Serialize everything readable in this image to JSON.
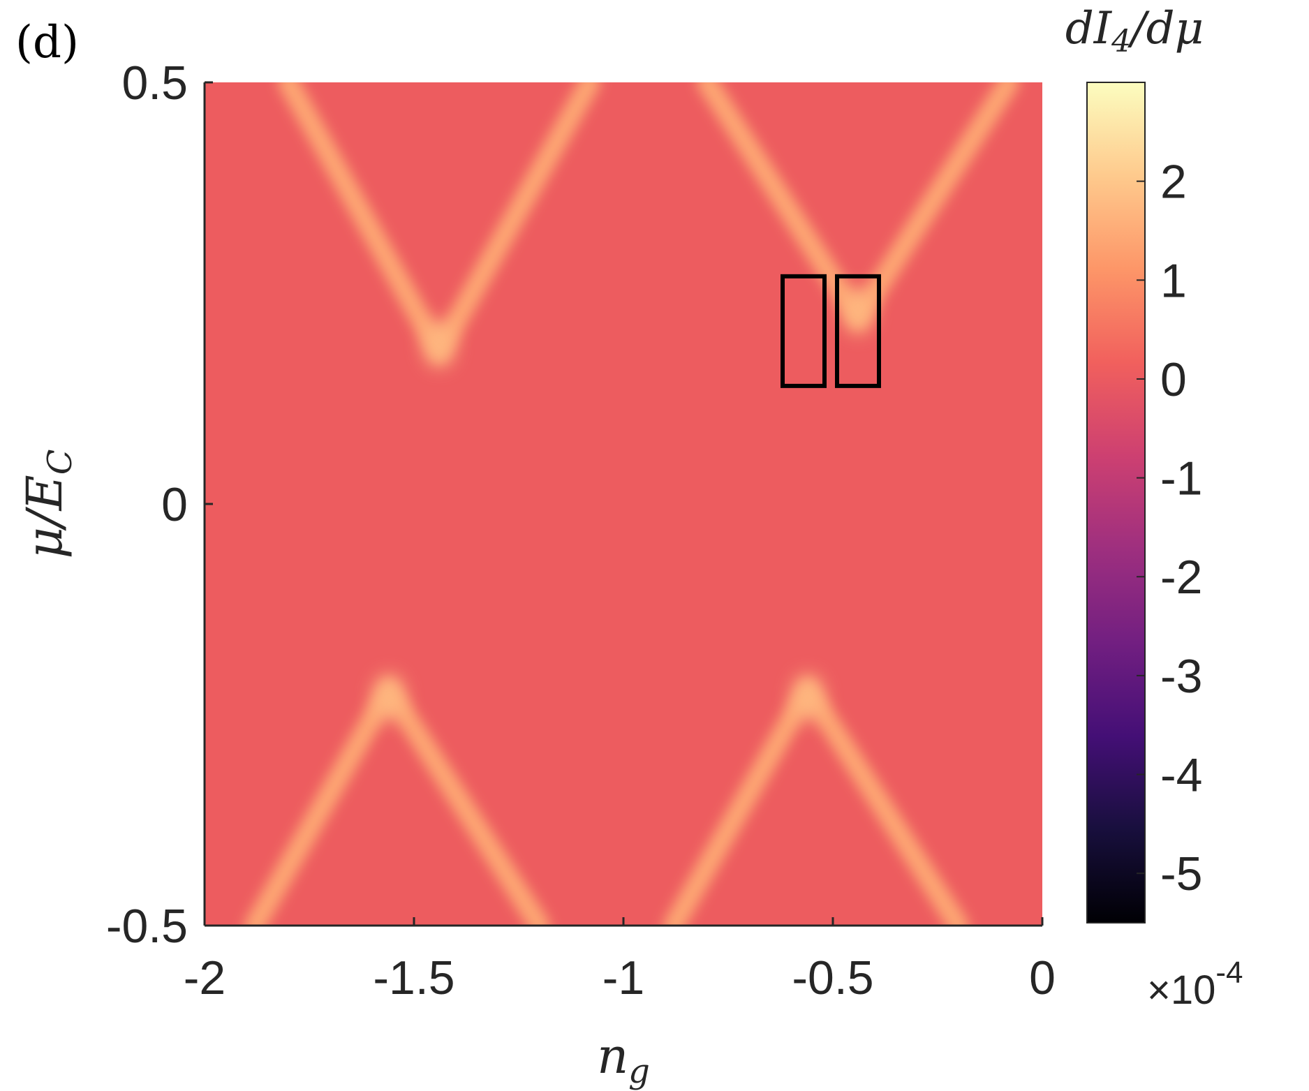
{
  "panel_label": "(d)",
  "colormap": {
    "name": "magma",
    "stops": [
      "#000004",
      "#180f3d",
      "#440f76",
      "#721f81",
      "#9e2f7f",
      "#cd4071",
      "#f1605d",
      "#fd9668",
      "#feca8d",
      "#fcfdbf"
    ]
  },
  "chart_data": {
    "type": "heatmap",
    "title": "",
    "xlabel": "n_g",
    "ylabel": "μ/E_C",
    "xlim": [
      -2,
      0
    ],
    "ylim": [
      -0.5,
      0.5
    ],
    "xticks": [
      -2,
      -1.5,
      -1,
      -0.5,
      0
    ],
    "xtick_labels": [
      "-2",
      "-1.5",
      "-1",
      "-0.5",
      "0"
    ],
    "yticks": [
      -0.5,
      0,
      0.5
    ],
    "ytick_labels": [
      "-0.5",
      "0",
      "0.5"
    ],
    "colorbar": {
      "label": "dI_4/dμ",
      "clim": [
        -5.5,
        3
      ],
      "ticks": [
        2,
        1,
        0,
        -1,
        -2,
        -3,
        -4,
        -5
      ],
      "tick_labels": [
        "2",
        "1",
        "0",
        "-1",
        "-2",
        "-3",
        "-4",
        "-5"
      ],
      "multiplier_prefix": "×10",
      "multiplier_exponent": "-4",
      "location": "right"
    },
    "background_value": 0.05,
    "ridge_peak_value": 1.4,
    "ridges": [
      {
        "apex": [
          -1.44,
          0.18
        ],
        "left_end": [
          -1.8,
          0.5
        ],
        "right_end": [
          -1.08,
          0.5
        ],
        "opens": "up"
      },
      {
        "apex": [
          -0.44,
          0.22
        ],
        "left_end": [
          -0.8,
          0.5
        ],
        "right_end": [
          -0.08,
          0.5
        ],
        "opens": "up"
      },
      {
        "apex": [
          -1.56,
          -0.22
        ],
        "left_end": [
          -1.88,
          -0.5
        ],
        "right_end": [
          -1.2,
          -0.5
        ],
        "opens": "down"
      },
      {
        "apex": [
          -0.56,
          -0.22
        ],
        "left_end": [
          -0.88,
          -0.5
        ],
        "right_end": [
          -0.2,
          -0.5
        ],
        "opens": "down"
      }
    ],
    "annotations": [
      {
        "type": "rectangle",
        "x": [
          -0.62,
          -0.52
        ],
        "y": [
          0.14,
          0.27
        ]
      },
      {
        "type": "rectangle",
        "x": [
          -0.49,
          -0.39
        ],
        "y": [
          0.14,
          0.27
        ]
      }
    ],
    "grid": false,
    "legend": "none"
  }
}
